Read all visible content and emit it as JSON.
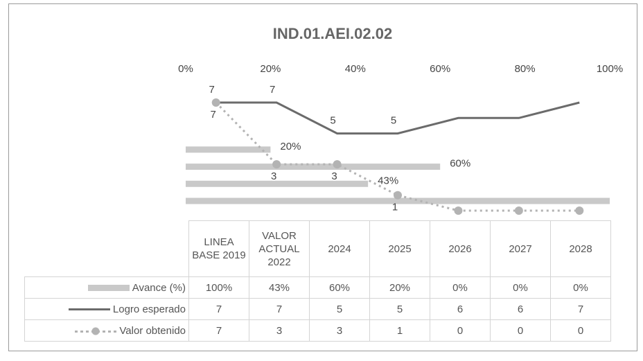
{
  "chart_data": {
    "type": "bar-line",
    "title": "IND.01.AEI.02.02",
    "categories": [
      "LINEA BASE 2019",
      "VALOR ACTUAL 2022",
      "2024",
      "2025",
      "2026",
      "2027",
      "2028"
    ],
    "xlim": [
      0,
      100
    ],
    "xticks": [
      {
        "value": 0,
        "label": "0%"
      },
      {
        "value": 20,
        "label": "20%"
      },
      {
        "value": 40,
        "label": "40%"
      },
      {
        "value": 60,
        "label": "60%"
      },
      {
        "value": 80,
        "label": "80%"
      },
      {
        "value": 100,
        "label": "100%"
      }
    ],
    "ylim": [
      0,
      7
    ],
    "series": [
      {
        "name": "Avance (%)",
        "type": "bar",
        "color": "#c9c9c9",
        "values": [
          100,
          43,
          60,
          20,
          0,
          0,
          0
        ],
        "value_labels": [
          "100%",
          "43%",
          "60%",
          "20%",
          "0%",
          "0%",
          "0%"
        ],
        "data_labels": [
          false,
          true,
          true,
          true,
          false,
          false,
          false
        ]
      },
      {
        "name": "Logro esperado",
        "type": "line",
        "color": "#6b6b6b",
        "values": [
          7,
          7,
          5,
          5,
          6,
          6,
          7
        ],
        "data_labels": [
          true,
          true,
          true,
          true,
          false,
          false,
          false
        ]
      },
      {
        "name": "Valor obtenido",
        "type": "dotted-line",
        "color": "#b3b3b3",
        "values": [
          7,
          3,
          3,
          1,
          0,
          0,
          0
        ],
        "data_labels": [
          true,
          true,
          true,
          true,
          false,
          false,
          false
        ]
      }
    ]
  }
}
